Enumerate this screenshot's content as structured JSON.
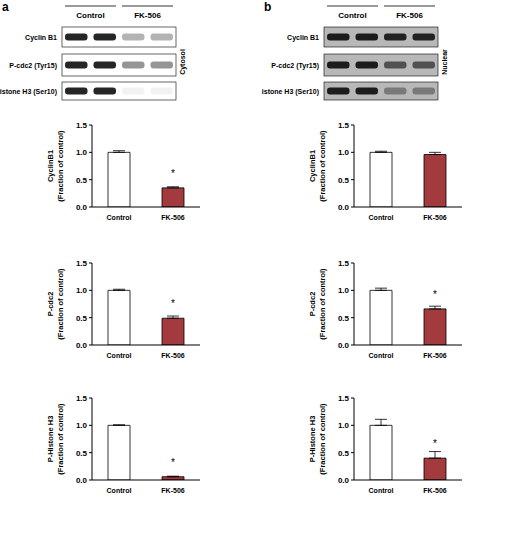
{
  "panels": [
    {
      "label": "a",
      "groups": [
        "Control",
        "FK-506"
      ],
      "compartment": "Cytosol",
      "blots": [
        "Cyclin B1",
        "P-cdc2 (Tyr15)",
        "P-Histone H3 (Ser10)"
      ]
    },
    {
      "label": "b",
      "groups": [
        "Control",
        "FK-506"
      ],
      "compartment": "Nuclear",
      "blots": [
        "Cyclin B1",
        "P-cdc2 (Tyr15)",
        "P-Histone H3 (Ser10)"
      ]
    }
  ],
  "chart_data": [
    {
      "type": "bar",
      "y_label": "CyclinB1 (Fraction of control)",
      "categories": [
        "Control",
        "FK-506"
      ],
      "values": [
        1.0,
        0.35
      ],
      "errors": [
        0.03,
        0.02
      ],
      "colors": [
        "#ffffff",
        "#a33a3e"
      ],
      "annotations": [
        {
          "category": "FK-506",
          "text": "*"
        }
      ],
      "ylim": [
        0,
        1.5
      ],
      "yticks": [
        {
          "value": 0,
          "label": "0.0"
        },
        {
          "value": 0.5,
          "label": "0.5"
        },
        {
          "value": 1,
          "label": "1.0"
        },
        {
          "value": 1.5,
          "label": "1.5"
        }
      ]
    },
    {
      "type": "bar",
      "y_label": "P-cdc2 (Fraction of control)",
      "categories": [
        "Control",
        "FK-506"
      ],
      "values": [
        1.0,
        0.49
      ],
      "errors": [
        0.02,
        0.04
      ],
      "colors": [
        "#ffffff",
        "#a33a3e"
      ],
      "annotations": [
        {
          "category": "FK-506",
          "text": "*"
        }
      ],
      "ylim": [
        0,
        1.5
      ],
      "yticks": [
        {
          "value": 0,
          "label": "0.0"
        },
        {
          "value": 0.5,
          "label": "0.5"
        },
        {
          "value": 1,
          "label": "1.0"
        },
        {
          "value": 1.5,
          "label": "1.5"
        }
      ]
    },
    {
      "type": "bar",
      "y_label": "P-Histone H3 (Fraction of control)",
      "categories": [
        "Control",
        "FK-506"
      ],
      "values": [
        1.0,
        0.06
      ],
      "errors": [
        0.01,
        0.01
      ],
      "colors": [
        "#ffffff",
        "#a33a3e"
      ],
      "annotations": [
        {
          "category": "FK-506",
          "text": "*"
        }
      ],
      "ylim": [
        0,
        1.5
      ],
      "yticks": [
        {
          "value": 0,
          "label": "0.0"
        },
        {
          "value": 0.5,
          "label": "0.5"
        },
        {
          "value": 1,
          "label": "1.0"
        },
        {
          "value": 1.5,
          "label": "1.5"
        }
      ]
    },
    {
      "type": "bar",
      "y_label": "CyclinB1 (Fraction of control)",
      "categories": [
        "Control",
        "FK-506"
      ],
      "values": [
        1.0,
        0.96
      ],
      "errors": [
        0.02,
        0.04
      ],
      "colors": [
        "#ffffff",
        "#a33a3e"
      ],
      "annotations": [],
      "ylim": [
        0,
        1.5
      ],
      "yticks": [
        {
          "value": 0,
          "label": "0.0"
        },
        {
          "value": 0.5,
          "label": "0.5"
        },
        {
          "value": 1,
          "label": "1.0"
        },
        {
          "value": 1.5,
          "label": "1.5"
        }
      ]
    },
    {
      "type": "bar",
      "y_label": "P-cdc2 (Fraction of control)",
      "categories": [
        "Control",
        "FK-506"
      ],
      "values": [
        1.0,
        0.66
      ],
      "errors": [
        0.04,
        0.05
      ],
      "colors": [
        "#ffffff",
        "#a33a3e"
      ],
      "annotations": [
        {
          "category": "FK-506",
          "text": "*"
        }
      ],
      "ylim": [
        0,
        1.5
      ],
      "yticks": [
        {
          "value": 0,
          "label": "0.0"
        },
        {
          "value": 0.5,
          "label": "0.5"
        },
        {
          "value": 1,
          "label": "1.0"
        },
        {
          "value": 1.5,
          "label": "1.5"
        }
      ]
    },
    {
      "type": "bar",
      "y_label": "P-Histone H3 (Fraction of control)",
      "categories": [
        "Control",
        "FK-506"
      ],
      "values": [
        1.0,
        0.4
      ],
      "errors": [
        0.11,
        0.12
      ],
      "colors": [
        "#ffffff",
        "#a33a3e"
      ],
      "annotations": [
        {
          "category": "FK-506",
          "text": "*"
        }
      ],
      "ylim": [
        0,
        1.5
      ],
      "yticks": [
        {
          "value": 0,
          "label": "0.0"
        },
        {
          "value": 0.5,
          "label": "0.5"
        },
        {
          "value": 1,
          "label": "1.0"
        },
        {
          "value": 1.5,
          "label": "1.5"
        }
      ]
    }
  ]
}
